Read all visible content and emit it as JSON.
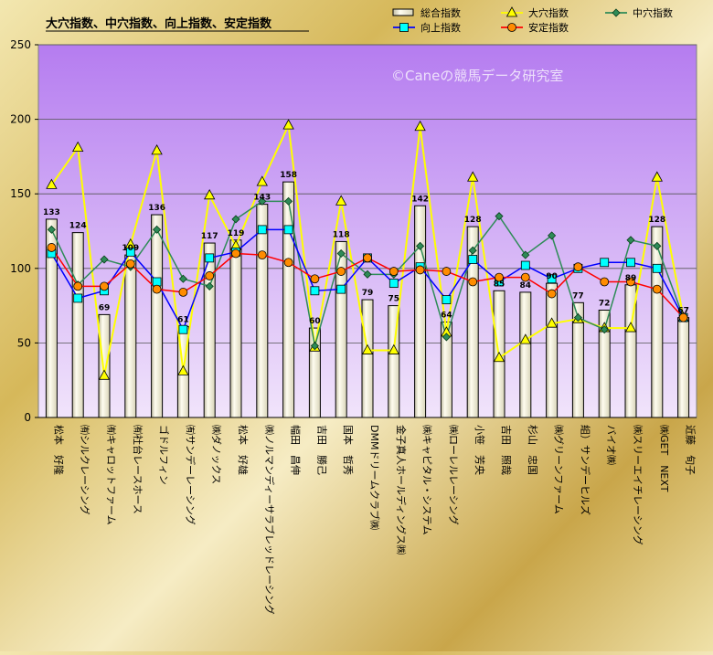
{
  "chart_data": {
    "type": "bar+line",
    "title": "大穴指数、中穴指数、向上指数、安定指数",
    "watermark": "©Caneの競馬データ研究室",
    "ylim": [
      0,
      250
    ],
    "yticks": [
      0,
      50,
      100,
      150,
      200,
      250
    ],
    "grid": true,
    "legend_position": "top-right",
    "categories": [
      "松本　好隆",
      "㈲シルクレーシング",
      "㈲キャロットファーム",
      "㈲社台レースホース",
      "ゴドルフィン",
      "㈲サンデーレーシング",
      "㈱ダノックス",
      "松本　好雄",
      "㈱ノルマンディーサラブレッドレーシング",
      "幅田　昌伸",
      "吉田　勝己",
      "国本　哲秀",
      "DMMドリームクラブ㈱",
      "金子真人ホールディングス㈱",
      "㈱キャピタル・システム",
      "㈱ローレルレーシング",
      "小笹　芳央",
      "吉田　照哉",
      "杉山　忠国",
      "㈱グリーンファーム",
      "組）サンデーヒルズ",
      "バイオ㈱",
      "㈱スリーエイチレーシング",
      "㈱GET　NEXT",
      "近藤　旬子"
    ],
    "series": [
      {
        "name": "総合指数",
        "kind": "bar",
        "color": "#f5f0d0",
        "values": [
          133,
          124,
          69,
          109,
          136,
          61,
          117,
          119,
          143,
          158,
          60,
          118,
          79,
          75,
          142,
          64,
          128,
          85,
          84,
          90,
          77,
          72,
          89,
          128,
          67
        ]
      },
      {
        "name": "大穴指数",
        "kind": "line",
        "color": "#ffff00",
        "marker": "triangle",
        "values": [
          156,
          181,
          28,
          116,
          179,
          31,
          149,
          115,
          158,
          196,
          47,
          145,
          45,
          45,
          195,
          57,
          161,
          40,
          52,
          63,
          66,
          60,
          60,
          161,
          67
        ]
      },
      {
        "name": "中穴指数",
        "kind": "line",
        "color": "#2e8b57",
        "marker": "diamond",
        "values": [
          126,
          89,
          106,
          101,
          126,
          93,
          88,
          133,
          145,
          145,
          48,
          110,
          96,
          96,
          115,
          54,
          112,
          135,
          109,
          122,
          67,
          59,
          119,
          115,
          67
        ]
      },
      {
        "name": "向上指数",
        "kind": "line",
        "color": "#0000ff",
        "marker": "square",
        "values": [
          110,
          80,
          85,
          111,
          91,
          59,
          107,
          111,
          126,
          126,
          85,
          86,
          107,
          90,
          101,
          79,
          106,
          91,
          102,
          93,
          100,
          104,
          104,
          100,
          67
        ]
      },
      {
        "name": "安定指数",
        "kind": "line",
        "color": "#ff0000",
        "marker": "circle",
        "values": [
          114,
          88,
          88,
          103,
          86,
          84,
          95,
          110,
          109,
          104,
          93,
          98,
          107,
          98,
          99,
          98,
          91,
          94,
          94,
          83,
          101,
          91,
          91,
          86,
          67
        ]
      }
    ],
    "data_labels_series": "総合指数"
  }
}
